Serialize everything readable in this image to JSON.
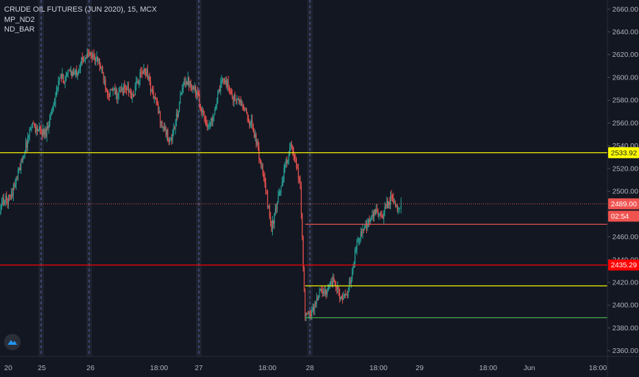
{
  "legend": {
    "title": "CRUDE OIL FUTURES (JUN 2020), 15, MCX",
    "indicator1": "MP_ND2",
    "indicator2": "ND_BAR"
  },
  "colors": {
    "background": "#131722",
    "up": "#26a69a",
    "down": "#ef5350",
    "yellow_line": "#ffff00",
    "red_line": "#ff0000",
    "green_line": "#4caf50",
    "session_band": "#2a2e39",
    "session_divider": "#5b6bc0",
    "axis_text": "#b2b5be"
  },
  "chart_data": {
    "type": "candlestick",
    "title": "CRUDE OIL FUTURES (JUN 2020), 15, MCX",
    "y_axis": {
      "range": [
        2355,
        2668
      ],
      "ticks": [
        "2660.00",
        "2640.00",
        "2620.00",
        "2600.00",
        "2580.00",
        "2560.00",
        "2540.00",
        "2520.00",
        "2500.00",
        "2480.00",
        "2460.00",
        "2440.00",
        "2420.00",
        "2400.00",
        "2380.00",
        "2360.00"
      ],
      "tick_values": [
        2660,
        2640,
        2620,
        2600,
        2580,
        2560,
        2540,
        2520,
        2500,
        2480,
        2460,
        2440,
        2420,
        2400,
        2380,
        2360
      ]
    },
    "x_axis": {
      "labels": [
        "20",
        "25",
        "26",
        "18:00",
        "27",
        "18:00",
        "28",
        "18:00",
        "29",
        "18:00",
        "Jun",
        "18:00"
      ]
    },
    "series": [
      {
        "close_path": [
          [
            -55,
            2488
          ],
          [
            -50,
            2470
          ],
          [
            -45,
            2458
          ],
          [
            -40,
            2478
          ],
          [
            -35,
            2492
          ],
          [
            -30,
            2492
          ],
          [
            -25,
            2500
          ],
          [
            -20,
            2512
          ],
          [
            -15,
            2528
          ],
          [
            -10,
            2542
          ],
          [
            -5,
            2560
          ],
          [
            0,
            2555
          ],
          [
            5,
            2552
          ],
          [
            10,
            2552
          ],
          [
            15,
            2568
          ],
          [
            20,
            2585
          ],
          [
            25,
            2600
          ],
          [
            30,
            2598
          ],
          [
            35,
            2606
          ],
          [
            40,
            2602
          ],
          [
            45,
            2611
          ],
          [
            50,
            2618
          ],
          [
            55,
            2620
          ],
          [
            60,
            2618
          ],
          [
            65,
            2614
          ],
          [
            70,
            2600
          ],
          [
            75,
            2586
          ],
          [
            80,
            2588
          ],
          [
            85,
            2584
          ],
          [
            90,
            2590
          ],
          [
            95,
            2590
          ],
          [
            100,
            2582
          ],
          [
            105,
            2596
          ],
          [
            110,
            2604
          ],
          [
            115,
            2606
          ],
          [
            120,
            2588
          ],
          [
            125,
            2578
          ],
          [
            130,
            2560
          ],
          [
            135,
            2552
          ],
          [
            140,
            2544
          ],
          [
            145,
            2560
          ],
          [
            150,
            2582
          ],
          [
            155,
            2598
          ],
          [
            160,
            2596
          ],
          [
            165,
            2590
          ],
          [
            170,
            2578
          ],
          [
            175,
            2565
          ],
          [
            180,
            2556
          ],
          [
            185,
            2570
          ],
          [
            190,
            2586
          ],
          [
            195,
            2600
          ],
          [
            200,
            2592
          ],
          [
            205,
            2582
          ],
          [
            210,
            2580
          ],
          [
            215,
            2575
          ],
          [
            220,
            2565
          ],
          [
            225,
            2558
          ],
          [
            230,
            2540
          ],
          [
            235,
            2520
          ],
          [
            240,
            2495
          ],
          [
            245,
            2468
          ],
          [
            250,
            2485
          ],
          [
            255,
            2505
          ],
          [
            260,
            2525
          ],
          [
            265,
            2540
          ],
          [
            270,
            2525
          ],
          [
            275,
            2505
          ],
          [
            280,
            2390
          ],
          [
            285,
            2392
          ],
          [
            290,
            2400
          ],
          [
            295,
            2412
          ],
          [
            300,
            2410
          ],
          [
            305,
            2418
          ],
          [
            310,
            2422
          ],
          [
            315,
            2410
          ],
          [
            320,
            2405
          ],
          [
            325,
            2412
          ],
          [
            330,
            2435
          ],
          [
            335,
            2460
          ],
          [
            340,
            2465
          ],
          [
            345,
            2470
          ],
          [
            350,
            2478
          ],
          [
            355,
            2484
          ],
          [
            360,
            2475
          ],
          [
            365,
            2488
          ],
          [
            370,
            2494
          ],
          [
            375,
            2488
          ],
          [
            380,
            2488
          ]
        ]
      }
    ],
    "horizontal_lines": [
      {
        "price": 2533.92,
        "color": "#ffff00",
        "label": "2533.92",
        "start_bar": -62
      },
      {
        "price": 2435.29,
        "color": "#ff0000",
        "label": "2435.29",
        "start_bar": -62
      },
      {
        "price": 2489.0,
        "color": "#ef5350",
        "label": "2489.00",
        "start_bar": -62,
        "dotted": true
      },
      {
        "price": 2471,
        "color": "#ef5350",
        "start_bar": 280
      },
      {
        "price": 2417,
        "color": "#ffff00",
        "start_bar": 280
      },
      {
        "price": 2389,
        "color": "#4caf50",
        "start_bar": 280
      }
    ],
    "current_price": {
      "value": "2489.00",
      "countdown": "02:54"
    }
  }
}
